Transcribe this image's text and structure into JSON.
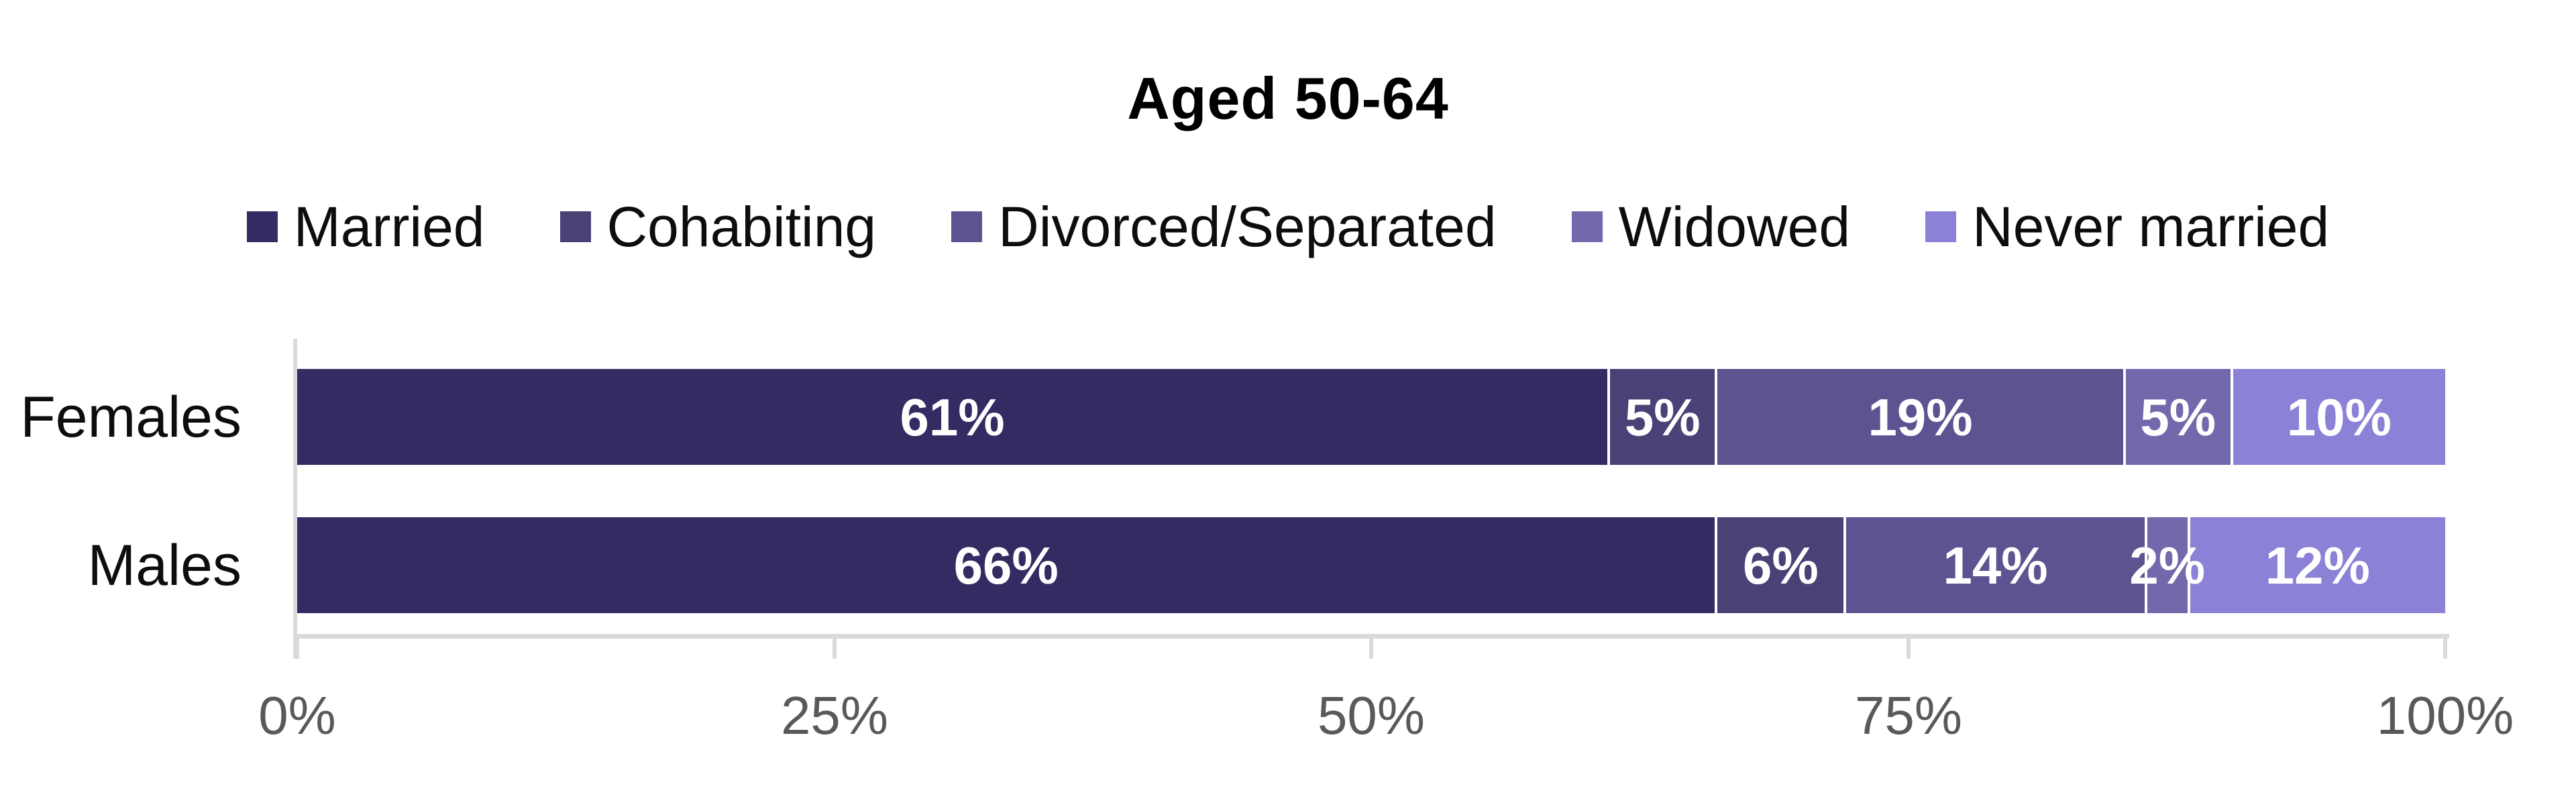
{
  "chart_data": {
    "type": "bar",
    "stacked": true,
    "orientation": "horizontal",
    "title": "Aged 50-64",
    "categories": [
      "Females",
      "Males"
    ],
    "series": [
      {
        "name": "Married",
        "color": "#332C63",
        "values": [
          61,
          66
        ]
      },
      {
        "name": "Cohabiting",
        "color": "#4A4176",
        "values": [
          5,
          6
        ]
      },
      {
        "name": "Divorced/Separated",
        "color": "#5C5391",
        "values": [
          19,
          14
        ]
      },
      {
        "name": "Widowed",
        "color": "#7169AC",
        "values": [
          5,
          2
        ]
      },
      {
        "name": "Never married",
        "color": "#8B81D6",
        "values": [
          10,
          12
        ]
      }
    ],
    "data_labels": [
      [
        "61%",
        "5%",
        "19%",
        "5%",
        "10%"
      ],
      [
        "66%",
        "6%",
        "14%",
        "2%",
        "12%"
      ]
    ],
    "x_ticks": [
      "0%",
      "25%",
      "50%",
      "75%",
      "100%"
    ],
    "xlim": [
      0,
      100
    ],
    "legend_position": "top",
    "grid": false
  },
  "colors": {
    "background": "#FFFFFF",
    "title_text": "#000000",
    "axis_line": "#DADADA",
    "tick_label_text": "#595959",
    "data_label_text": "#FFFFFF",
    "segment_separator": "#FFFFFF"
  }
}
